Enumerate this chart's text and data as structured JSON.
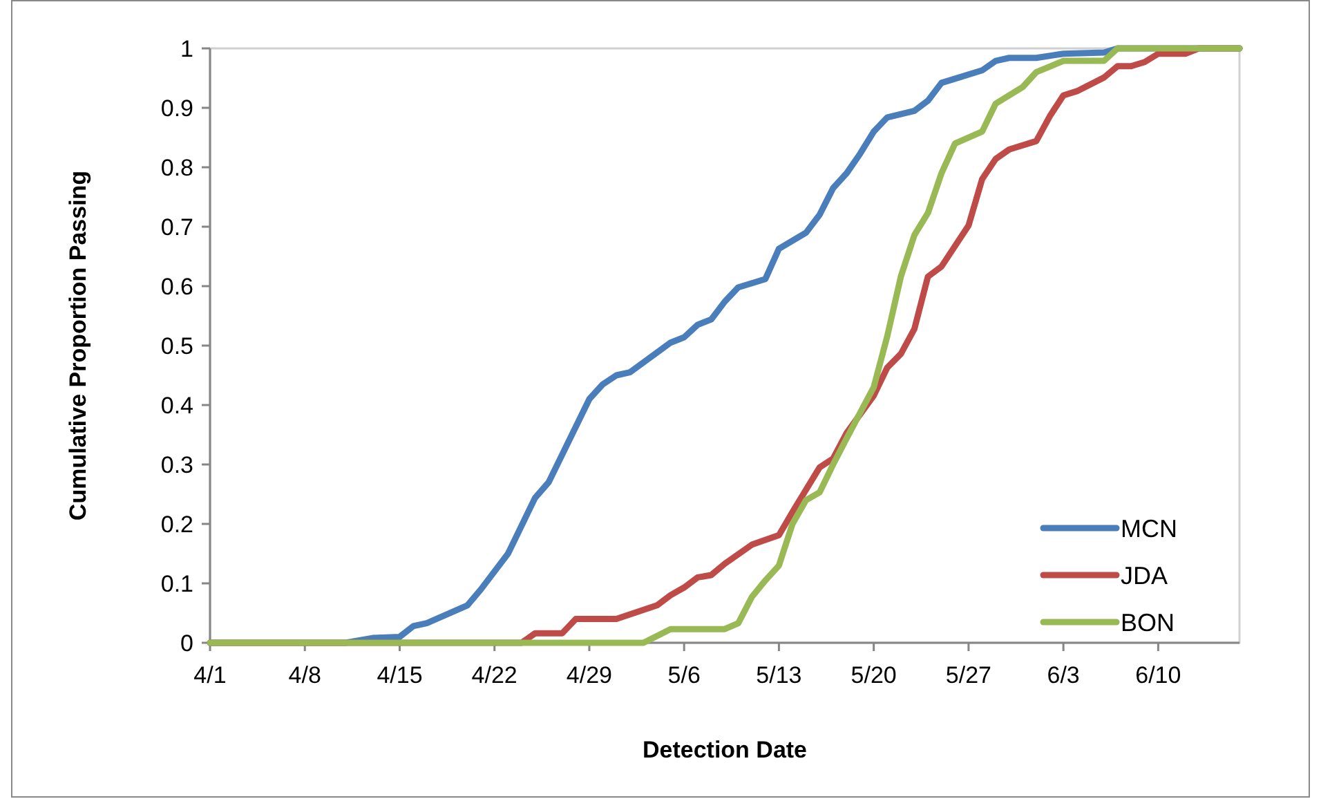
{
  "chart_data": {
    "type": "line",
    "xlabel": "Detection Date",
    "ylabel": "Cumulative Proportion Passing",
    "xlim": [
      "--04-01",
      "--06-16"
    ],
    "xticks": [
      {
        "value": "--04-01",
        "label": "4/1"
      },
      {
        "value": "--04-08",
        "label": "4/8"
      },
      {
        "value": "--04-15",
        "label": "4/15"
      },
      {
        "value": "--04-22",
        "label": "4/22"
      },
      {
        "value": "--04-29",
        "label": "4/29"
      },
      {
        "value": "--05-06",
        "label": "5/6"
      },
      {
        "value": "--05-13",
        "label": "5/13"
      },
      {
        "value": "--05-20",
        "label": "5/20"
      },
      {
        "value": "--05-27",
        "label": "5/27"
      },
      {
        "value": "--06-03",
        "label": "6/3"
      },
      {
        "value": "--06-10",
        "label": "6/10"
      }
    ],
    "ylim": [
      0,
      1
    ],
    "yticks": [
      0,
      0.1,
      0.2,
      0.3,
      0.4,
      0.5,
      0.6,
      0.7,
      0.8,
      0.9,
      1
    ],
    "grid": false,
    "legend": "bottom right",
    "marker": "none",
    "line_style": "solid",
    "series": [
      {
        "name": "MCN",
        "color": "#4a7ebb",
        "x": [
          "--04-01",
          "--04-11",
          "--04-13",
          "--04-15",
          "--04-16",
          "--04-17",
          "--04-20",
          "--04-21",
          "--04-23",
          "--04-25",
          "--04-26",
          "--04-29",
          "--04-30",
          "--05-01",
          "--05-02",
          "--05-05",
          "--05-06",
          "--05-07",
          "--05-08",
          "--05-09",
          "--05-10",
          "--05-12",
          "--05-13",
          "--05-15",
          "--05-16",
          "--05-17",
          "--05-18",
          "--05-19",
          "--05-20",
          "--05-21",
          "--05-23",
          "--05-24",
          "--05-25",
          "--05-26",
          "--05-28",
          "--05-29",
          "--05-30",
          "--06-01",
          "--06-03",
          "--06-06",
          "--06-07",
          "--06-16"
        ],
        "values": [
          0,
          0,
          0.008,
          0.01,
          0.028,
          0.033,
          0.063,
          0.09,
          0.15,
          0.244,
          0.27,
          0.41,
          0.435,
          0.45,
          0.455,
          0.505,
          0.514,
          0.535,
          0.544,
          0.574,
          0.598,
          0.612,
          0.663,
          0.69,
          0.72,
          0.765,
          0.79,
          0.823,
          0.86,
          0.884,
          0.895,
          0.912,
          0.942,
          0.949,
          0.963,
          0.979,
          0.984,
          0.984,
          0.991,
          0.993,
          1,
          1
        ]
      },
      {
        "name": "JDA",
        "color": "#be4b48",
        "x": [
          "--04-01",
          "--04-24",
          "--04-25",
          "--04-27",
          "--04-28",
          "--05-01",
          "--05-04",
          "--05-05",
          "--05-06",
          "--05-07",
          "--05-08",
          "--05-09",
          "--05-11",
          "--05-13",
          "--05-14",
          "--05-16",
          "--05-17",
          "--05-18",
          "--05-20",
          "--05-21",
          "--05-22",
          "--05-23",
          "--05-24",
          "--05-25",
          "--05-27",
          "--05-28",
          "--05-29",
          "--05-30",
          "--06-01",
          "--06-02",
          "--06-03",
          "--06-04",
          "--06-06",
          "--06-07",
          "--06-08",
          "--06-09",
          "--06-10",
          "--06-12",
          "--06-13",
          "--06-16"
        ],
        "values": [
          0,
          0,
          0.016,
          0.016,
          0.04,
          0.04,
          0.063,
          0.08,
          0.093,
          0.11,
          0.114,
          0.133,
          0.165,
          0.181,
          0.22,
          0.295,
          0.31,
          0.353,
          0.416,
          0.463,
          0.486,
          0.528,
          0.616,
          0.633,
          0.702,
          0.78,
          0.814,
          0.83,
          0.844,
          0.886,
          0.921,
          0.928,
          0.951,
          0.97,
          0.97,
          0.977,
          0.991,
          0.991,
          1,
          1
        ]
      },
      {
        "name": "BON",
        "color": "#98b954",
        "x": [
          "--04-01",
          "--05-03",
          "--05-05",
          "--05-09",
          "--05-10",
          "--05-11",
          "--05-12",
          "--05-13",
          "--05-14",
          "--05-15",
          "--05-16",
          "--05-17",
          "--05-18",
          "--05-20",
          "--05-21",
          "--05-22",
          "--05-23",
          "--05-24",
          "--05-25",
          "--05-26",
          "--05-28",
          "--05-29",
          "--05-31",
          "--06-01",
          "--06-03",
          "--06-06",
          "--06-07",
          "--06-16"
        ],
        "values": [
          0,
          0,
          0.023,
          0.023,
          0.033,
          0.077,
          0.105,
          0.13,
          0.2,
          0.24,
          0.253,
          0.3,
          0.344,
          0.43,
          0.516,
          0.616,
          0.686,
          0.723,
          0.79,
          0.84,
          0.86,
          0.907,
          0.935,
          0.96,
          0.979,
          0.979,
          1,
          1
        ]
      }
    ]
  }
}
